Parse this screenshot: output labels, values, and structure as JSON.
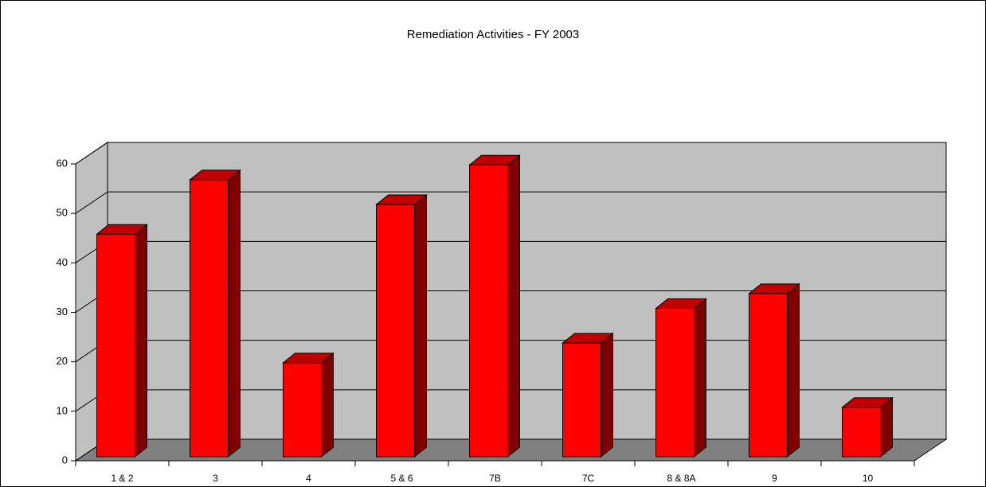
{
  "chart_data": {
    "type": "bar3d",
    "title": "Remediation Activities - FY 2003",
    "categories": [
      "1 & 2",
      "3",
      "4",
      "5 & 6",
      "7B",
      "7C",
      "8 & 8A",
      "9",
      "10"
    ],
    "values": [
      45,
      56,
      19,
      51,
      59,
      23,
      30,
      33,
      10
    ],
    "color": "#ff0000",
    "ylim": [
      0,
      60
    ],
    "yticks": [
      0,
      10,
      20,
      30,
      40,
      50,
      60
    ],
    "grid": true
  }
}
